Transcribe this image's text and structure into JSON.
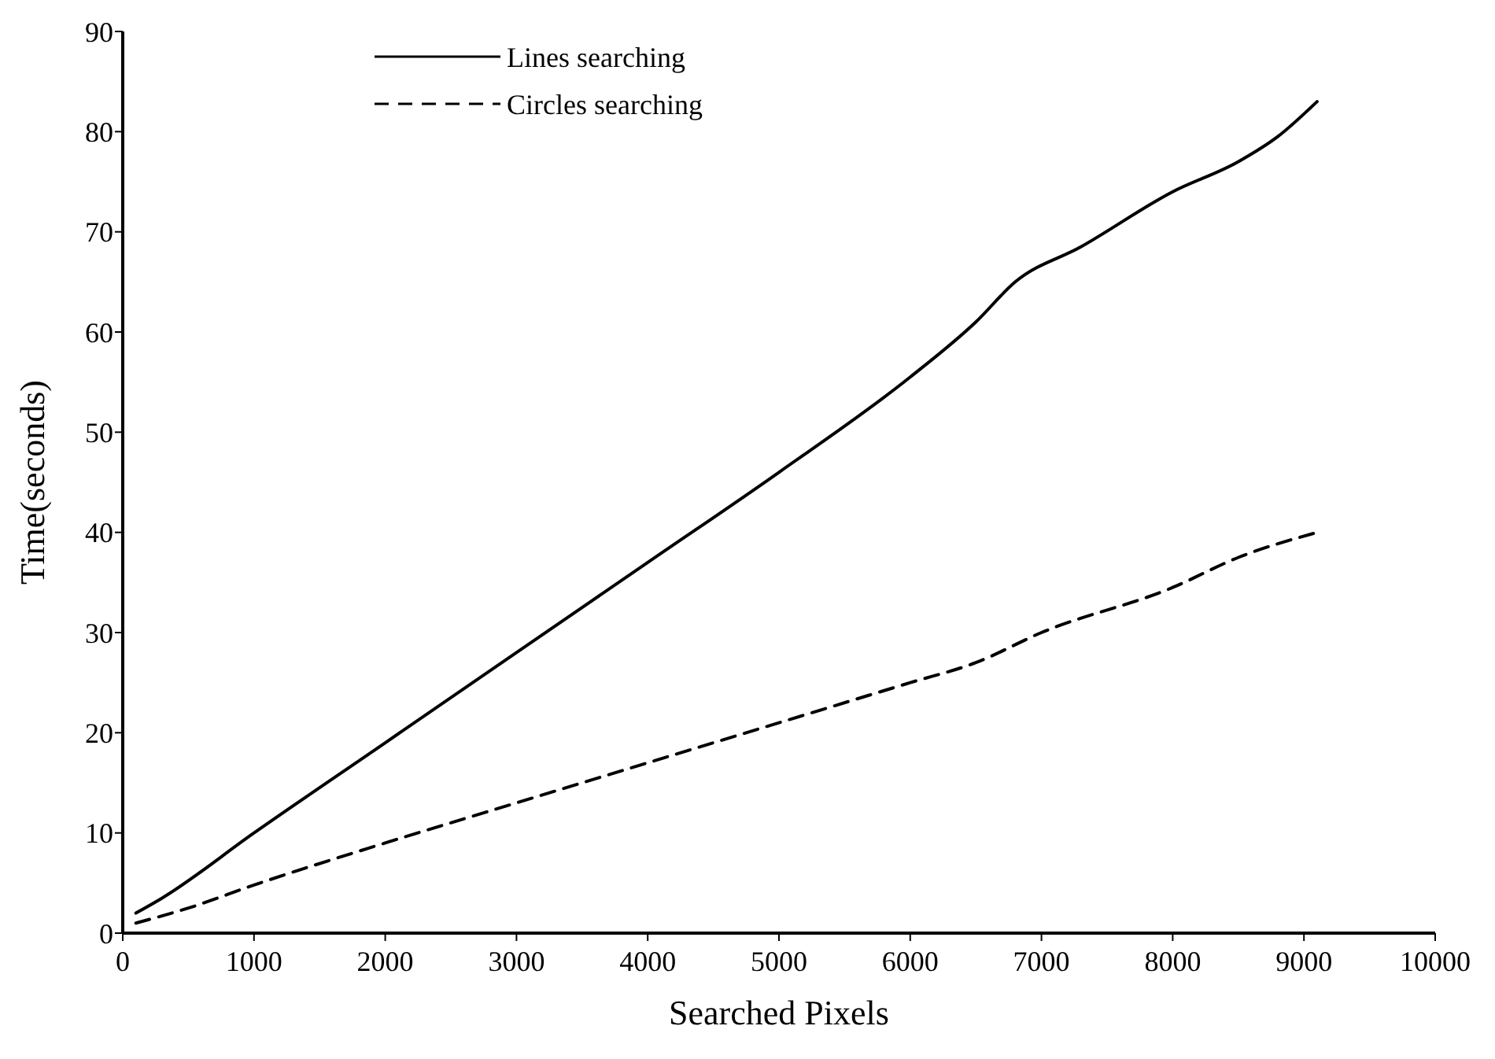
{
  "chart_data": {
    "type": "line",
    "xlabel": "Searched Pixels",
    "ylabel": "Time(seconds)",
    "xlim": [
      0,
      10000
    ],
    "xticks": [
      0,
      1000,
      2000,
      3000,
      4000,
      5000,
      6000,
      7000,
      8000,
      9000,
      10000
    ],
    "ylim": [
      0,
      90
    ],
    "yticks": [
      0,
      10,
      20,
      30,
      40,
      50,
      60,
      70,
      80,
      90
    ],
    "grid": false,
    "legend": "top left",
    "marker": "none",
    "series": [
      {
        "name": "Lines searching",
        "color": "#000000",
        "line_style": "solid",
        "x": [
          100,
          300,
          1000,
          2000,
          3000,
          4000,
          5000,
          6000,
          6500,
          6800,
          7300,
          8000,
          8500,
          8800,
          9100
        ],
        "values": [
          2,
          3.5,
          10,
          19,
          28,
          37,
          46,
          55.5,
          61,
          65,
          68.5,
          74,
          77,
          79.5,
          83
        ]
      },
      {
        "name": "Circles searching",
        "color": "#000000",
        "line_style": "dashed",
        "x": [
          100,
          500,
          1000,
          2000,
          3000,
          4000,
          5000,
          6000,
          6500,
          7000,
          8000,
          8500,
          9100
        ],
        "values": [
          1,
          2.5,
          4.8,
          9,
          13,
          17,
          21,
          25,
          27,
          30,
          34.5,
          37.5,
          40
        ]
      }
    ]
  }
}
